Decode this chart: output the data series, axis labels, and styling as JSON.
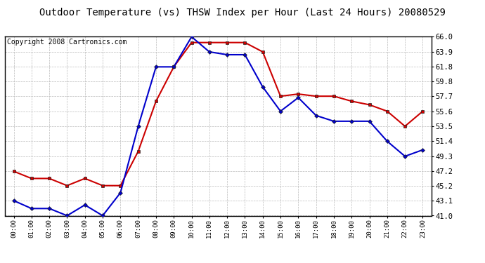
{
  "title": "Outdoor Temperature (vs) THSW Index per Hour (Last 24 Hours) 20080529",
  "copyright": "Copyright 2008 Cartronics.com",
  "hours": [
    "00:00",
    "01:00",
    "02:00",
    "03:00",
    "04:00",
    "05:00",
    "06:00",
    "07:00",
    "08:00",
    "09:00",
    "10:00",
    "11:00",
    "12:00",
    "13:00",
    "14:00",
    "15:00",
    "16:00",
    "17:00",
    "18:00",
    "19:00",
    "20:00",
    "21:00",
    "22:00",
    "23:00"
  ],
  "temp_red": [
    47.2,
    46.2,
    46.2,
    45.2,
    46.2,
    45.2,
    45.2,
    50.0,
    57.0,
    61.8,
    65.2,
    65.2,
    65.2,
    65.2,
    63.9,
    57.7,
    58.0,
    57.7,
    57.7,
    57.0,
    56.5,
    55.6,
    53.5,
    55.6
  ],
  "thsw_blue": [
    43.1,
    42.0,
    42.0,
    41.0,
    42.5,
    41.0,
    44.2,
    53.5,
    61.8,
    61.8,
    66.0,
    63.9,
    63.5,
    63.5,
    59.0,
    55.6,
    57.5,
    55.0,
    54.2,
    54.2,
    54.2,
    51.4,
    49.3,
    50.2
  ],
  "ylim_min": 41.0,
  "ylim_max": 66.0,
  "yticks": [
    41.0,
    43.1,
    45.2,
    47.2,
    49.3,
    51.4,
    53.5,
    55.6,
    57.7,
    59.8,
    61.8,
    63.9,
    66.0
  ],
  "red_color": "#cc0000",
  "blue_color": "#0000cc",
  "bg_color": "#ffffff",
  "grid_color": "#bbbbbb",
  "title_fontsize": 10,
  "copyright_fontsize": 7
}
